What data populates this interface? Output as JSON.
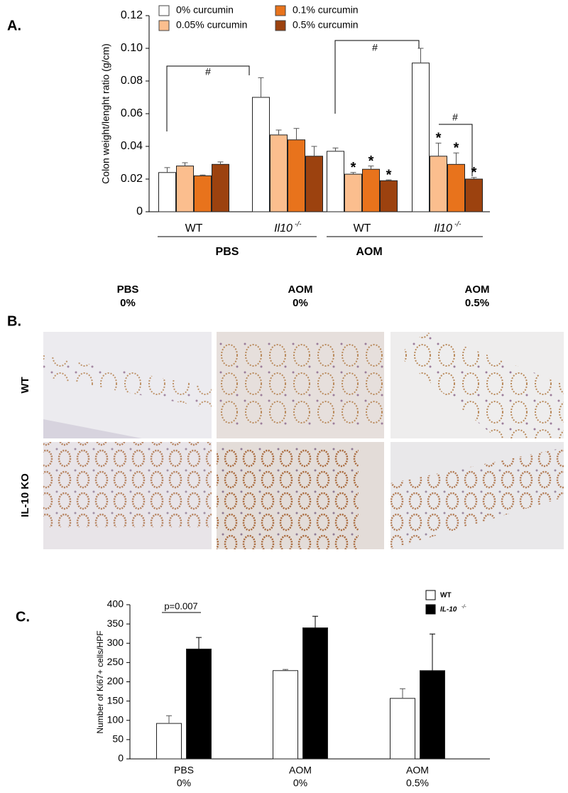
{
  "panel_labels": {
    "a": "A.",
    "b": "B.",
    "c": "C."
  },
  "chart_data": [
    {
      "type": "bar",
      "y_label": "Colon weight/lenght ratio (g/cm)",
      "categories": [
        "WT",
        "Il10",
        "WT",
        "Il10"
      ],
      "category_superscripts": [
        null,
        "-/-",
        null,
        "-/-"
      ],
      "group_labels": [
        "PBS",
        "AOM"
      ],
      "series": [
        {
          "name": "0% curcumin",
          "color": "#ffffff",
          "values": [
            0.024,
            0.07,
            0.037,
            0.091
          ],
          "errors": [
            0.003,
            0.012,
            0.002,
            0.009
          ]
        },
        {
          "name": "0.05% curcumin",
          "color": "#fbbe8e",
          "values": [
            0.028,
            0.047,
            0.023,
            0.034
          ],
          "errors": [
            0.002,
            0.003,
            0.001,
            0.008
          ]
        },
        {
          "name": "0.1% curcumin",
          "color": "#e8731c",
          "values": [
            0.022,
            0.044,
            0.026,
            0.029
          ],
          "errors": [
            0.0005,
            0.007,
            0.002,
            0.007
          ]
        },
        {
          "name": "0.5% curcumin",
          "color": "#9c420f",
          "values": [
            0.029,
            0.034,
            0.019,
            0.02
          ],
          "errors": [
            0.0015,
            0.006,
            0.0005,
            0.001
          ]
        }
      ],
      "ylim": [
        0,
        0.12
      ],
      "yticks": [
        0,
        0.02,
        0.04,
        0.06,
        0.08,
        {
          "value": 0.1,
          "label": "0.10"
        },
        0.12
      ],
      "annotations": [
        "#",
        "#",
        "#",
        "*",
        "*",
        "*",
        "*",
        "*",
        "*"
      ]
    },
    {
      "type": "bar",
      "y_label": "Number of Ki67+ cells/HPF",
      "categories": [
        "PBS",
        "AOM",
        "AOM"
      ],
      "category_sublabels": [
        "0%",
        "0%",
        "0.5%"
      ],
      "series": [
        {
          "name": "WT",
          "color": "#ffffff",
          "values": [
            92,
            229,
            157
          ],
          "errors": [
            20,
            3,
            25
          ]
        },
        {
          "name": "IL-10",
          "name_superscript": "-/-",
          "color": "#000000",
          "values": [
            285,
            340,
            229
          ],
          "errors": [
            30,
            30,
            95
          ]
        }
      ],
      "ylim": [
        0,
        400
      ],
      "yticks": [
        0,
        50,
        100,
        150,
        200,
        250,
        300,
        350,
        400
      ],
      "annotations": [
        "p=0.007"
      ]
    }
  ],
  "micrographs": {
    "columns": [
      {
        "line1": "PBS",
        "line2": "0%"
      },
      {
        "line1": "AOM",
        "line2": "0%"
      },
      {
        "line1": "AOM",
        "line2": "0.5%"
      }
    ],
    "rows": [
      "WT",
      "IL-10 KO"
    ]
  }
}
